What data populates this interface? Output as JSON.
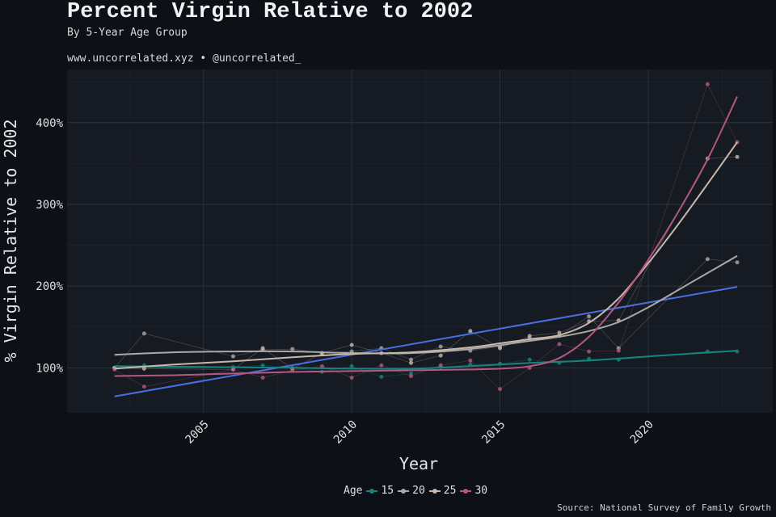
{
  "header": {
    "title": "Percent Virgin Relative to 2002",
    "subtitle": "By 5-Year Age Group",
    "site": "www.uncorrelated.xyz • @uncorrelated_"
  },
  "footer": {
    "source": "Source: National Survey of Family Growth"
  },
  "legend": {
    "title": "Age",
    "items": [
      {
        "label": "15",
        "color": "#17857e"
      },
      {
        "label": "20",
        "color": "#a9aaa5"
      },
      {
        "label": "25",
        "color": "#c8b8aa"
      },
      {
        "label": "30",
        "color": "#b5577e"
      }
    ]
  },
  "colors": {
    "background": "#0d1016",
    "panel": "#161a22",
    "grid": "#2c313a",
    "trend": "#4a6fe3"
  },
  "chart_data": {
    "type": "scatter",
    "xlabel": "Year",
    "ylabel": "% Virgin Relative to 2002",
    "xlim": [
      2000.4,
      2024.2
    ],
    "ylim": [
      45,
      465
    ],
    "x_ticks": [
      2005,
      2010,
      2015,
      2020
    ],
    "y_ticks": [
      100,
      200,
      300,
      400
    ],
    "y_tick_labels": [
      "100%",
      "200%",
      "300%",
      "400%"
    ],
    "grid": true,
    "legend_position": "bottom",
    "trend_line": {
      "x": [
        2002,
        2023
      ],
      "y": [
        65,
        199
      ]
    },
    "series": [
      {
        "name": "15",
        "color": "#17857e",
        "x": [
          2002,
          2003,
          2006,
          2007,
          2008,
          2009,
          2010,
          2011,
          2012,
          2013,
          2014,
          2015,
          2016,
          2017,
          2018,
          2019,
          2022,
          2023
        ],
        "y": [
          100,
          103,
          101,
          103,
          100,
          95,
          102,
          89,
          93,
          101,
          104,
          105,
          110,
          106,
          111,
          110,
          120,
          120
        ],
        "smooth": {
          "x": [
            2002,
            2005,
            2008,
            2010,
            2012,
            2014,
            2016,
            2018,
            2020,
            2023
          ],
          "y": [
            102,
            101,
            100,
            99,
            99,
            102,
            106,
            109,
            114,
            121
          ]
        }
      },
      {
        "name": "20",
        "color": "#a9aaa5",
        "x": [
          2002,
          2003,
          2006,
          2007,
          2008,
          2009,
          2010,
          2011,
          2012,
          2013,
          2014,
          2015,
          2016,
          2017,
          2018,
          2019,
          2022,
          2023
        ],
        "y": [
          100,
          142,
          114,
          122,
          123,
          118,
          120,
          124,
          110,
          126,
          121,
          126,
          136,
          139,
          163,
          124,
          233,
          229
        ],
        "smooth": {
          "x": [
            2002,
            2004,
            2006,
            2008,
            2010,
            2012,
            2014,
            2016,
            2017,
            2018,
            2019,
            2020,
            2021,
            2022,
            2023
          ],
          "y": [
            116,
            119,
            120,
            120,
            118,
            118,
            123,
            133,
            138,
            145,
            156,
            174,
            195,
            216,
            237
          ]
        }
      },
      {
        "name": "25",
        "color": "#c8b8aa",
        "x": [
          2002,
          2003,
          2006,
          2007,
          2008,
          2009,
          2010,
          2011,
          2012,
          2013,
          2014,
          2015,
          2016,
          2017,
          2018,
          2019,
          2022,
          2023
        ],
        "y": [
          100,
          99,
          98,
          124,
          99,
          118,
          128,
          118,
          106,
          115,
          145,
          124,
          139,
          143,
          157,
          158,
          356,
          358
        ],
        "smooth": {
          "x": [
            2002,
            2004,
            2006,
            2008,
            2010,
            2012,
            2014,
            2015,
            2016,
            2017,
            2018,
            2019,
            2020,
            2021,
            2022,
            2023
          ],
          "y": [
            99,
            104,
            108,
            113,
            117,
            119,
            125,
            130,
            135,
            140,
            155,
            185,
            228,
            275,
            325,
            376
          ]
        }
      },
      {
        "name": "30",
        "color": "#b5577e",
        "x": [
          2002,
          2003,
          2006,
          2007,
          2008,
          2009,
          2010,
          2011,
          2012,
          2013,
          2014,
          2015,
          2016,
          2017,
          2018,
          2019,
          2022,
          2023
        ],
        "y": [
          98,
          77,
          98,
          88,
          97,
          102,
          88,
          103,
          90,
          103,
          109,
          74,
          100,
          129,
          120,
          121,
          447,
          376
        ],
        "smooth": {
          "x": [
            2002,
            2004,
            2006,
            2008,
            2010,
            2012,
            2014,
            2015,
            2016,
            2017,
            2018,
            2019,
            2020,
            2021,
            2022,
            2023
          ],
          "y": [
            90,
            91,
            93,
            95,
            96,
            97,
            98,
            99,
            102,
            112,
            138,
            180,
            232,
            290,
            355,
            432
          ]
        }
      }
    ]
  }
}
